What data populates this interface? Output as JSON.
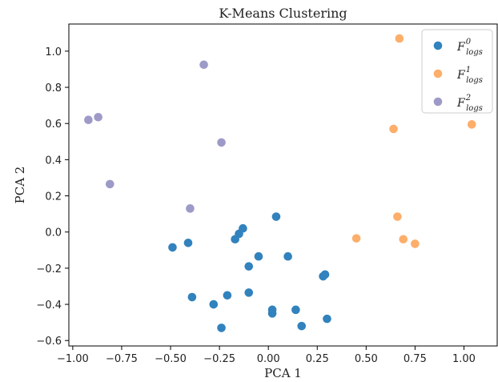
{
  "chart_data": {
    "type": "scatter",
    "title": "K-Means Clustering",
    "xlabel": "PCA 1",
    "ylabel": "PCA 2",
    "xlim": [
      -1.02,
      1.17
    ],
    "ylim": [
      -0.63,
      1.15
    ],
    "xticks": [
      -1.0,
      -0.75,
      -0.5,
      -0.25,
      0.0,
      0.25,
      0.5,
      0.75,
      1.0
    ],
    "xtick_labels": [
      "−1.00",
      "−0.75",
      "−0.50",
      "−0.25",
      "0.00",
      "0.25",
      "0.50",
      "0.75",
      "1.00"
    ],
    "yticks": [
      -0.6,
      -0.4,
      -0.2,
      0.0,
      0.2,
      0.4,
      0.6,
      0.8,
      1.0
    ],
    "ytick_labels": [
      "−0.6",
      "−0.4",
      "−0.2",
      "0.0",
      "0.2",
      "0.4",
      "0.6",
      "0.8",
      "1.0"
    ],
    "grid": false,
    "legend_position": "top-right",
    "series": [
      {
        "name": "F",
        "legend_sup": "0",
        "legend_sub": "logs",
        "color": "#3182bd",
        "points": [
          [
            -0.49,
            -0.085
          ],
          [
            -0.41,
            -0.06
          ],
          [
            -0.39,
            -0.36
          ],
          [
            -0.28,
            -0.4
          ],
          [
            -0.21,
            -0.35
          ],
          [
            -0.24,
            -0.53
          ],
          [
            -0.17,
            -0.04
          ],
          [
            -0.15,
            -0.01
          ],
          [
            -0.13,
            0.02
          ],
          [
            -0.1,
            -0.19
          ],
          [
            -0.1,
            -0.335
          ],
          [
            -0.05,
            -0.135
          ],
          [
            0.04,
            0.085
          ],
          [
            0.1,
            -0.135
          ],
          [
            0.02,
            -0.45
          ],
          [
            0.02,
            -0.43
          ],
          [
            0.14,
            -0.43
          ],
          [
            0.17,
            -0.52
          ],
          [
            0.28,
            -0.245
          ],
          [
            0.29,
            -0.235
          ],
          [
            0.3,
            -0.48
          ]
        ]
      },
      {
        "name": "F",
        "legend_sup": "1",
        "legend_sub": "logs",
        "color": "#fdae6b",
        "points": [
          [
            0.67,
            1.07
          ],
          [
            0.64,
            0.57
          ],
          [
            1.04,
            0.595
          ],
          [
            0.66,
            0.085
          ],
          [
            0.45,
            -0.035
          ],
          [
            0.69,
            -0.04
          ],
          [
            0.75,
            -0.065
          ]
        ]
      },
      {
        "name": "F",
        "legend_sup": "2",
        "legend_sub": "logs",
        "color": "#9e9ac8",
        "points": [
          [
            -0.33,
            0.925
          ],
          [
            -0.92,
            0.62
          ],
          [
            -0.87,
            0.635
          ],
          [
            -0.24,
            0.495
          ],
          [
            -0.81,
            0.265
          ],
          [
            -0.4,
            0.13
          ]
        ]
      }
    ]
  }
}
